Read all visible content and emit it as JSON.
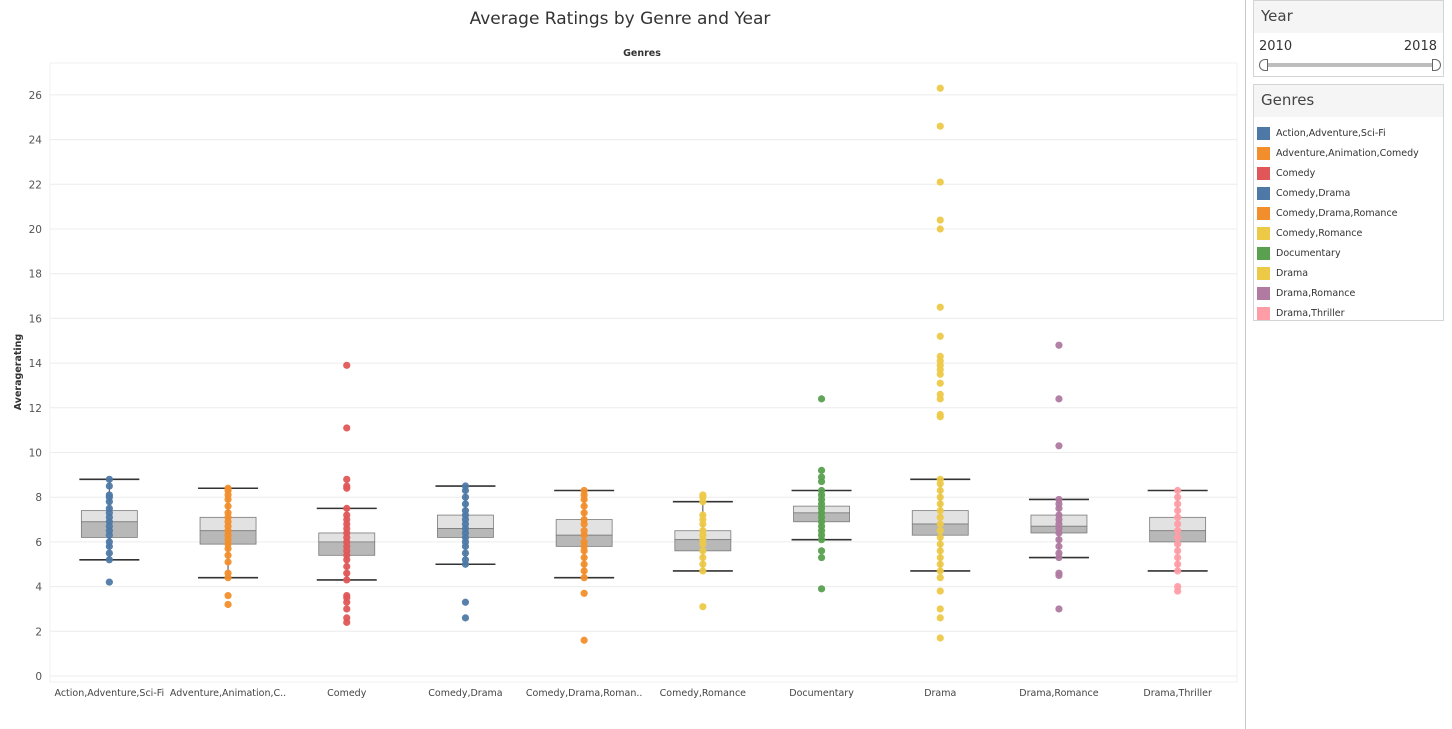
{
  "chart_data": {
    "type": "box-and-whisker with jittered points",
    "title": "Average Ratings by Genre and Year",
    "column_header": "Genres",
    "ylabel": "Averagerating",
    "ylim": [
      0,
      27
    ],
    "yticks": [
      0,
      2,
      4,
      6,
      8,
      10,
      12,
      14,
      16,
      18,
      20,
      22,
      24,
      26
    ],
    "grid": true,
    "legend_position": "right",
    "categories": [
      "Action,Adventure,Sci-Fi",
      "Adventure,Animation,C..",
      "Comedy",
      "Comedy,Drama",
      "Comedy,Drama,Roman..",
      "Comedy,Romance",
      "Documentary",
      "Drama",
      "Drama,Romance",
      "Drama,Thriller"
    ],
    "series": [
      {
        "name": "Action,Adventure,Sci-Fi",
        "color": "#4e79a7",
        "box": {
          "whisker_low": 5.2,
          "q1": 6.2,
          "median": 6.9,
          "q3": 7.4,
          "whisker_high": 8.8
        },
        "points": [
          4.2,
          5.2,
          5.5,
          5.8,
          6.0,
          6.3,
          6.5,
          6.7,
          6.9,
          7.1,
          7.3,
          7.5,
          7.8,
          8.0,
          8.1,
          8.5,
          8.8
        ]
      },
      {
        "name": "Adventure,Animation,Comedy",
        "color": "#f28e2b",
        "box": {
          "whisker_low": 4.4,
          "q1": 5.9,
          "median": 6.5,
          "q3": 7.1,
          "whisker_high": 8.4
        },
        "points": [
          3.2,
          3.6,
          4.4,
          4.6,
          5.1,
          5.4,
          5.7,
          5.9,
          6.1,
          6.3,
          6.5,
          6.7,
          6.9,
          7.1,
          7.3,
          7.6,
          7.9,
          8.1,
          8.3,
          8.4
        ]
      },
      {
        "name": "Comedy",
        "color": "#e15759",
        "box": {
          "whisker_low": 4.3,
          "q1": 5.4,
          "median": 6.0,
          "q3": 6.4,
          "whisker_high": 7.5
        },
        "points": [
          2.4,
          2.6,
          3.0,
          3.3,
          3.5,
          3.6,
          4.3,
          4.6,
          4.9,
          5.2,
          5.4,
          5.6,
          5.8,
          6.0,
          6.2,
          6.4,
          6.6,
          6.8,
          7.0,
          7.2,
          7.5,
          8.4,
          8.5,
          8.8,
          11.1,
          13.9
        ]
      },
      {
        "name": "Comedy,Drama",
        "color": "#4e79a7",
        "box": {
          "whisker_low": 5.0,
          "q1": 6.2,
          "median": 6.6,
          "q3": 7.2,
          "whisker_high": 8.5
        },
        "points": [
          2.6,
          3.3,
          5.0,
          5.2,
          5.5,
          5.8,
          6.0,
          6.2,
          6.4,
          6.6,
          6.8,
          7.0,
          7.2,
          7.4,
          7.7,
          8.0,
          8.3,
          8.5
        ]
      },
      {
        "name": "Comedy,Drama,Romance",
        "color": "#f28e2b",
        "box": {
          "whisker_low": 4.4,
          "q1": 5.8,
          "median": 6.3,
          "q3": 7.0,
          "whisker_high": 8.3
        },
        "points": [
          1.6,
          3.7,
          4.4,
          4.7,
          5.0,
          5.3,
          5.6,
          5.8,
          6.0,
          6.3,
          6.5,
          6.8,
          7.0,
          7.3,
          7.6,
          7.9,
          8.1,
          8.3
        ]
      },
      {
        "name": "Comedy,Romance",
        "color": "#edc948",
        "box": {
          "whisker_low": 4.7,
          "q1": 5.6,
          "median": 6.1,
          "q3": 6.5,
          "whisker_high": 7.8
        },
        "points": [
          3.1,
          4.7,
          5.0,
          5.3,
          5.6,
          5.9,
          6.1,
          6.3,
          6.5,
          6.8,
          7.0,
          7.2,
          7.8,
          8.0,
          8.1
        ]
      },
      {
        "name": "Documentary",
        "color": "#59a14f",
        "box": {
          "whisker_low": 6.1,
          "q1": 6.9,
          "median": 7.3,
          "q3": 7.6,
          "whisker_high": 8.3
        },
        "points": [
          3.9,
          5.3,
          5.6,
          6.1,
          6.3,
          6.5,
          6.7,
          6.9,
          7.1,
          7.3,
          7.5,
          7.7,
          7.9,
          8.1,
          8.3,
          8.7,
          8.9,
          9.2,
          12.4
        ]
      },
      {
        "name": "Drama",
        "color": "#edc948",
        "box": {
          "whisker_low": 4.7,
          "q1": 6.3,
          "median": 6.8,
          "q3": 7.4,
          "whisker_high": 8.8
        },
        "points": [
          1.7,
          2.6,
          3.0,
          3.8,
          4.4,
          4.7,
          5.0,
          5.3,
          5.6,
          5.9,
          6.2,
          6.5,
          6.8,
          7.1,
          7.4,
          7.7,
          8.0,
          8.3,
          8.6,
          8.8,
          11.6,
          11.7,
          12.4,
          12.6,
          13.1,
          13.5,
          13.7,
          13.9,
          14.1,
          14.3,
          15.2,
          16.5,
          20.0,
          20.4,
          22.1,
          24.6,
          26.3
        ]
      },
      {
        "name": "Drama,Romance",
        "color": "#b07aa1",
        "box": {
          "whisker_low": 5.3,
          "q1": 6.4,
          "median": 6.7,
          "q3": 7.2,
          "whisker_high": 7.9
        },
        "points": [
          3.0,
          4.5,
          4.6,
          5.3,
          5.5,
          5.8,
          6.1,
          6.4,
          6.6,
          6.8,
          7.0,
          7.2,
          7.5,
          7.7,
          7.9,
          10.3,
          12.4,
          14.8
        ]
      },
      {
        "name": "Drama,Thriller",
        "color": "#ff9da7",
        "box": {
          "whisker_low": 4.7,
          "q1": 6.0,
          "median": 6.5,
          "q3": 7.1,
          "whisker_high": 8.3
        },
        "points": [
          3.8,
          4.0,
          4.7,
          5.0,
          5.3,
          5.6,
          5.9,
          6.2,
          6.5,
          6.8,
          7.1,
          7.4,
          7.7,
          8.0,
          8.3
        ]
      }
    ]
  },
  "year_filter": {
    "title": "Year",
    "min_label": "2010",
    "max_label": "2018",
    "range": [
      2010,
      2018
    ]
  },
  "genres_legend": {
    "title": "Genres",
    "items": [
      {
        "label": "Action,Adventure,Sci-Fi",
        "color": "#4e79a7"
      },
      {
        "label": "Adventure,Animation,Comedy",
        "color": "#f28e2b"
      },
      {
        "label": "Comedy",
        "color": "#e15759"
      },
      {
        "label": "Comedy,Drama",
        "color": "#4e79a7"
      },
      {
        "label": "Comedy,Drama,Romance",
        "color": "#f28e2b"
      },
      {
        "label": "Comedy,Romance",
        "color": "#edc948"
      },
      {
        "label": "Documentary",
        "color": "#59a14f"
      },
      {
        "label": "Drama",
        "color": "#edc948"
      },
      {
        "label": "Drama,Romance",
        "color": "#b07aa1"
      },
      {
        "label": "Drama,Thriller",
        "color": "#ff9da7"
      }
    ]
  }
}
